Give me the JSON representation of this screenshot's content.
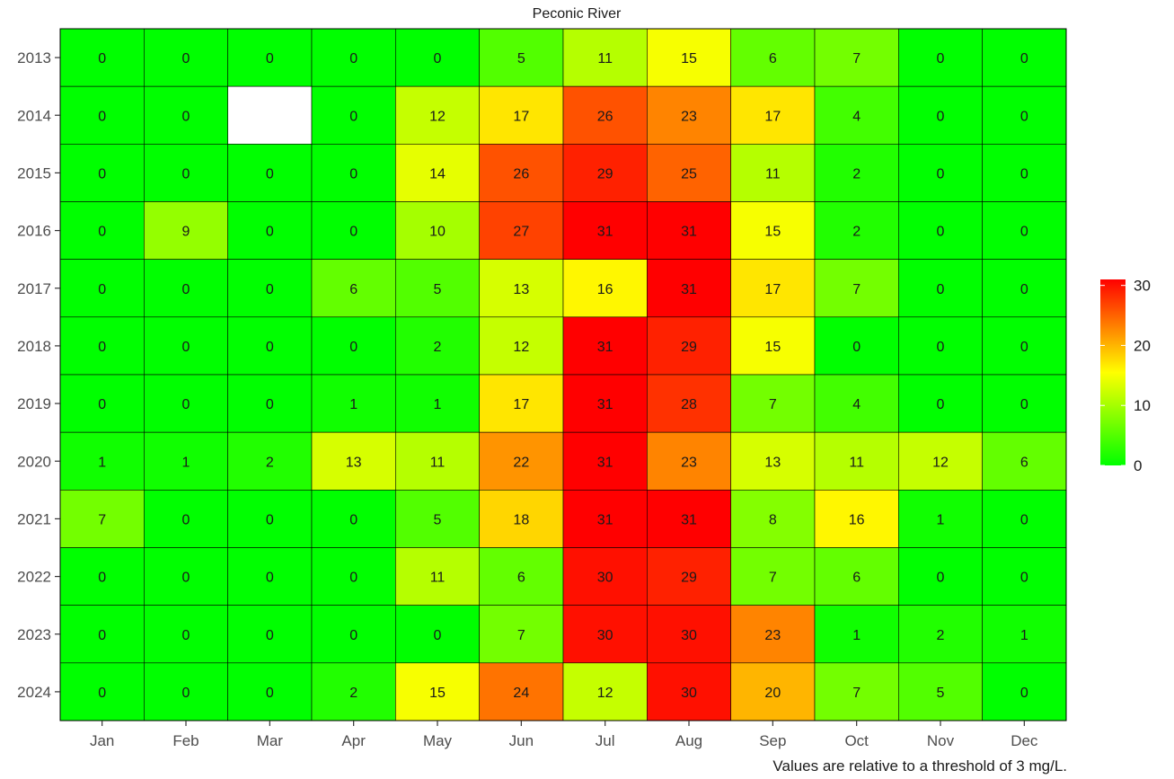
{
  "chart_data": {
    "type": "heatmap",
    "title": "Peconic River",
    "caption": "Values are relative to a threshold of 3 mg/L.",
    "x": [
      "Jan",
      "Feb",
      "Mar",
      "Apr",
      "May",
      "Jun",
      "Jul",
      "Aug",
      "Sep",
      "Oct",
      "Nov",
      "Dec"
    ],
    "y": [
      "2013",
      "2014",
      "2015",
      "2016",
      "2017",
      "2018",
      "2019",
      "2020",
      "2021",
      "2022",
      "2023",
      "2024"
    ],
    "values": [
      [
        0,
        0,
        0,
        0,
        0,
        5,
        11,
        15,
        6,
        7,
        0,
        0
      ],
      [
        0,
        0,
        null,
        0,
        12,
        17,
        26,
        23,
        17,
        4,
        0,
        0
      ],
      [
        0,
        0,
        0,
        0,
        14,
        26,
        29,
        25,
        11,
        2,
        0,
        0
      ],
      [
        0,
        9,
        0,
        0,
        10,
        27,
        31,
        31,
        15,
        2,
        0,
        0
      ],
      [
        0,
        0,
        0,
        6,
        5,
        13,
        16,
        31,
        17,
        7,
        0,
        0
      ],
      [
        0,
        0,
        0,
        0,
        2,
        12,
        31,
        29,
        15,
        0,
        0,
        0
      ],
      [
        0,
        0,
        0,
        1,
        1,
        17,
        31,
        28,
        7,
        4,
        0,
        0
      ],
      [
        1,
        1,
        2,
        13,
        11,
        22,
        31,
        23,
        13,
        11,
        12,
        6
      ],
      [
        7,
        0,
        0,
        0,
        5,
        18,
        31,
        31,
        8,
        16,
        1,
        0
      ],
      [
        0,
        0,
        0,
        0,
        11,
        6,
        30,
        29,
        7,
        6,
        0,
        0
      ],
      [
        0,
        0,
        0,
        0,
        0,
        7,
        30,
        30,
        23,
        1,
        2,
        1
      ],
      [
        0,
        0,
        0,
        2,
        15,
        24,
        12,
        30,
        20,
        7,
        5,
        0
      ]
    ],
    "colorscale": {
      "min": 0,
      "max": 31,
      "colors": [
        "#00ff00",
        "#ffff00",
        "#ff0000"
      ],
      "ticks": [
        0,
        10,
        20,
        30
      ]
    },
    "missing_color": "#ffffff",
    "legend_position": "right"
  }
}
